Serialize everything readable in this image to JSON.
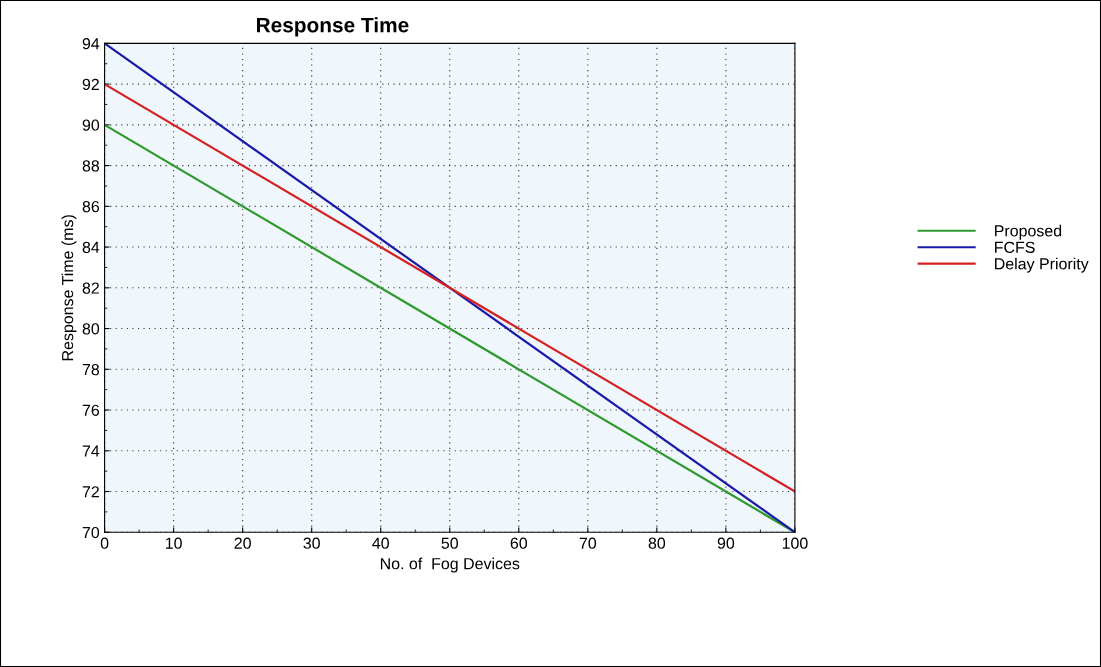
{
  "chart_data": {
    "type": "line",
    "title": "Response Time",
    "xlabel": "No. of  Fog Devices",
    "ylabel": "Response Time (ms)",
    "x": [
      0,
      100
    ],
    "series": [
      {
        "name": "Proposed",
        "color": "#2e9a2e",
        "values": [
          90,
          70
        ]
      },
      {
        "name": "FCFS",
        "color": "#1a1aa8",
        "values": [
          94,
          70
        ]
      },
      {
        "name": "Delay Priority",
        "color": "#d42020",
        "values": [
          92,
          72
        ]
      }
    ],
    "xlim": [
      0,
      100
    ],
    "xticks": [
      0,
      10,
      20,
      30,
      40,
      50,
      60,
      70,
      80,
      90,
      100
    ],
    "ylim": [
      70,
      94
    ],
    "yticks": [
      70,
      72,
      74,
      76,
      78,
      80,
      82,
      84,
      86,
      88,
      90,
      92,
      94
    ],
    "grid": true,
    "legend": "right",
    "line_style": "solid"
  }
}
